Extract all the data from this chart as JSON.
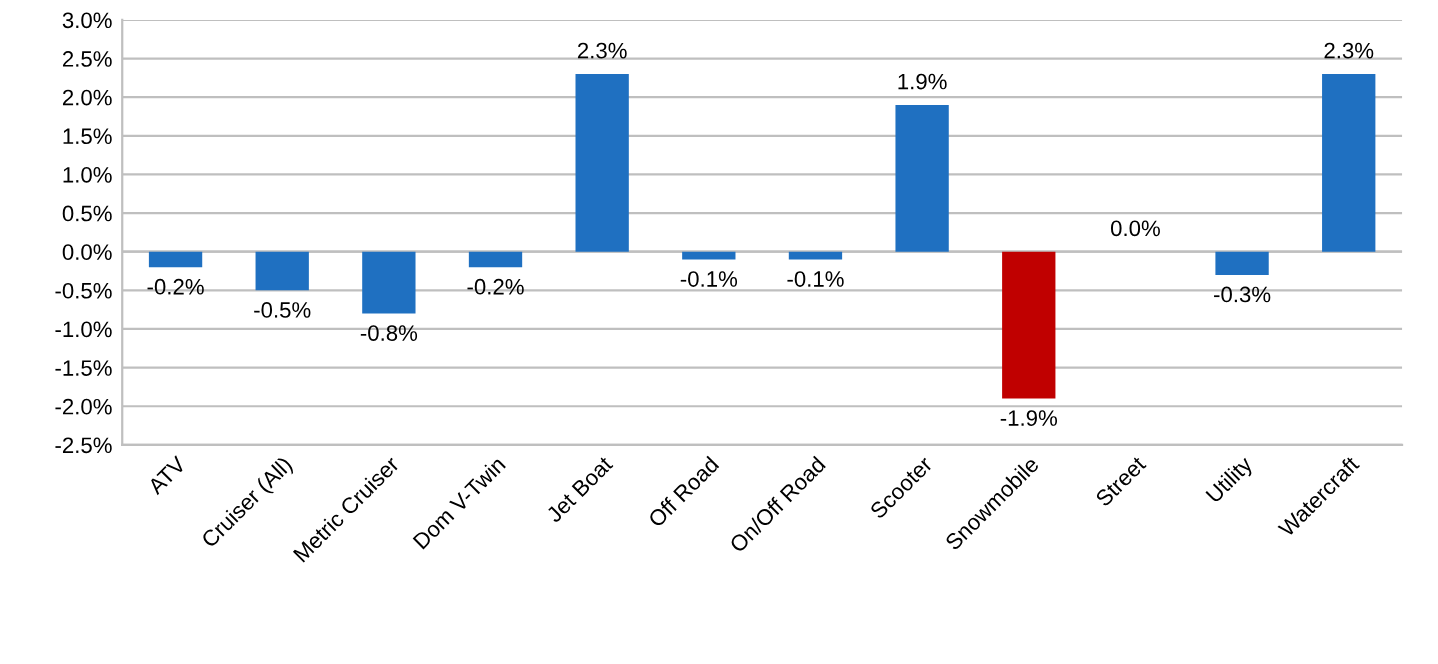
{
  "chart_data": {
    "type": "bar",
    "categories": [
      "ATV",
      "Cruiser (All)",
      "Metric Cruiser",
      "Dom V-Twin",
      "Jet Boat",
      "Off Road",
      "On/Off Road",
      "Scooter",
      "Snowmobile",
      "Street",
      "Utility",
      "Watercraft"
    ],
    "values": [
      -0.2,
      -0.5,
      -0.8,
      -0.2,
      2.3,
      -0.1,
      -0.1,
      1.9,
      -1.9,
      0.0,
      -0.3,
      2.3
    ],
    "colors": [
      "#1f70c1",
      "#1f70c1",
      "#1f70c1",
      "#1f70c1",
      "#1f70c1",
      "#1f70c1",
      "#1f70c1",
      "#1f70c1",
      "#c00000",
      "#1f70c1",
      "#1f70c1",
      "#1f70c1"
    ],
    "value_labels": [
      "-0.2%",
      "-0.5%",
      "-0.8%",
      "-0.2%",
      "2.3%",
      "-0.1%",
      "-0.1%",
      "1.9%",
      "-1.9%",
      "0.0%",
      "-0.3%",
      "2.3%"
    ],
    "ylim": [
      -2.5,
      3.0
    ],
    "yticks": [
      {
        "value": -2.5,
        "label": "-2.5%"
      },
      {
        "value": -2.0,
        "label": "-2.0%"
      },
      {
        "value": -1.5,
        "label": "-1.5%"
      },
      {
        "value": -1.0,
        "label": "-1.0%"
      },
      {
        "value": -0.5,
        "label": "-0.5%"
      },
      {
        "value": 0.0,
        "label": "0.0%"
      },
      {
        "value": 0.5,
        "label": "0.5%"
      },
      {
        "value": 1.0,
        "label": "1.0%"
      },
      {
        "value": 1.5,
        "label": "1.5%"
      },
      {
        "value": 2.0,
        "label": "2.0%"
      },
      {
        "value": 2.5,
        "label": "2.5%"
      },
      {
        "value": 3.0,
        "label": "3.0%"
      }
    ],
    "grid": "y",
    "legend": false
  }
}
